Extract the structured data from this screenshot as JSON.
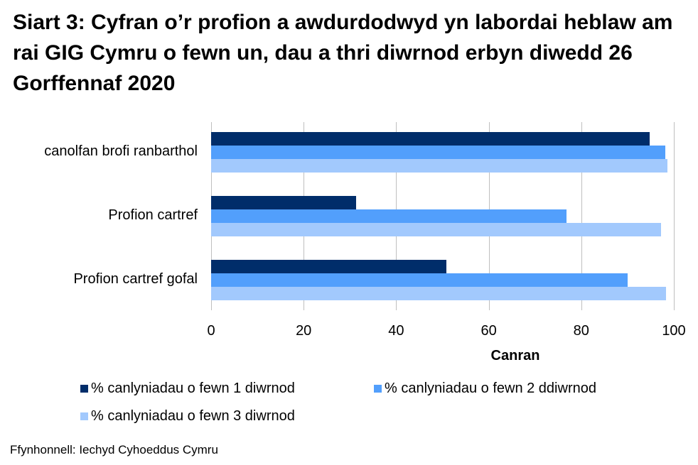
{
  "title": "Siart 3: Cyfran o’r profion a awdurdodwyd yn labordai heblaw am rai GIG Cymru o fewn un, dau a thri diwrnod erbyn diwedd 26 Gorffennaf 2020",
  "source": "Ffynhonnell: Iechyd Cyhoeddus Cymru",
  "colors": {
    "series1": "#002d6a",
    "series2": "#529ffc",
    "series3": "#a2c9fd",
    "grid": "#bfbfbf"
  },
  "chart_data": {
    "type": "bar",
    "orientation": "horizontal",
    "title": "Siart 3: Cyfran o’r profion a awdurdodwyd yn labordai heblaw am rai GIG Cymru o fewn un, dau a thri diwrnod erbyn diwedd 26 Gorffennaf 2020",
    "categories": [
      "canolfan brofi ranbarthol",
      "Profion cartref",
      "Profion cartref gofal"
    ],
    "series": [
      {
        "name": "% canlyniadau o fewn 1 diwrnod",
        "color": "#002d6a",
        "values": [
          94.8,
          31.3,
          50.8
        ]
      },
      {
        "name": "% canlyniadau o fewn 2 ddiwrnod",
        "color": "#529ffc",
        "values": [
          98.2,
          76.8,
          90.0
        ]
      },
      {
        "name": "% canlyniadau o fewn 3 diwrnod",
        "color": "#a2c9fd",
        "values": [
          98.6,
          97.2,
          98.3
        ]
      }
    ],
    "xlabel": "Canran",
    "ylabel": "",
    "xlim": [
      0,
      100
    ],
    "xticks": [
      "0",
      "20",
      "40",
      "60",
      "80",
      "100"
    ],
    "grid": true,
    "legend_position": "bottom"
  },
  "legend": [
    "% canlyniadau o fewn 1 diwrnod",
    "% canlyniadau o fewn 2 ddiwrnod",
    "% canlyniadau o fewn 3 diwrnod"
  ]
}
